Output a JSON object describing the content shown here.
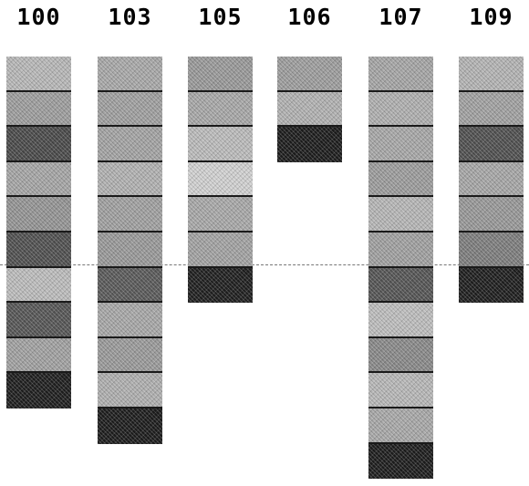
{
  "columns": [
    {
      "label": "100",
      "shades": [
        "#b8b8b8",
        "#9e9e9e",
        "#4a4a4a",
        "#a6a6a6",
        "#959595",
        "#505050",
        "#bdbdbd",
        "#565656",
        "#a2a2a2",
        "#1e1e1e"
      ]
    },
    {
      "label": "103",
      "shades": [
        "#a9a9a9",
        "#a0a0a0",
        "#a4a4a4",
        "#b2b2b2",
        "#a1a1a1",
        "#9a9a9a",
        "#5a5a5a",
        "#a8a8a8",
        "#9b9b9b",
        "#b0b0b0",
        "#1c1c1c"
      ]
    },
    {
      "label": "105",
      "shades": [
        "#9a9a9a",
        "#a8a8a8",
        "#bcbcbc",
        "#d2d2d2",
        "#a9a9a9",
        "#a3a3a3",
        "#1f1f1f"
      ]
    },
    {
      "label": "106",
      "shades": [
        "#9e9e9e",
        "#b2b2b2",
        "#1c1c1c"
      ]
    },
    {
      "label": "107",
      "shades": [
        "#a6a6a6",
        "#b0b0b0",
        "#a8a8a8",
        "#9d9d9d",
        "#b7b7b7",
        "#a1a1a1",
        "#555555",
        "#bebebe",
        "#8a8a8a",
        "#b8b8b8",
        "#a9a9a9",
        "#1d1d1d"
      ]
    },
    {
      "label": "109",
      "shades": [
        "#b4b4b4",
        "#a2a2a2",
        "#505050",
        "#a7a7a7",
        "#999999",
        "#7e7e7e",
        "#1e1e1e"
      ]
    }
  ]
}
